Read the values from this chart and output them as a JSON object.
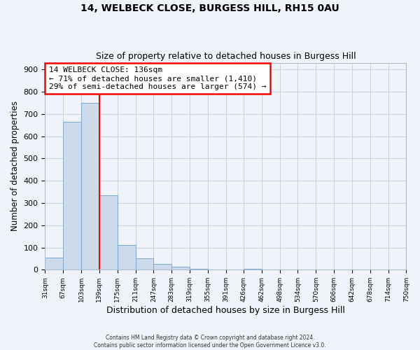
{
  "title": "14, WELBECK CLOSE, BURGESS HILL, RH15 0AU",
  "subtitle": "Size of property relative to detached houses in Burgess Hill",
  "xlabel": "Distribution of detached houses by size in Burgess Hill",
  "ylabel": "Number of detached properties",
  "footer_line1": "Contains HM Land Registry data © Crown copyright and database right 2024.",
  "footer_line2": "Contains public sector information licensed under the Open Government Licence v3.0.",
  "bin_edges": [
    31,
    67,
    103,
    139,
    175,
    211,
    247,
    283,
    319,
    355,
    391,
    426,
    462,
    498,
    534,
    570,
    606,
    642,
    678,
    714,
    750
  ],
  "bin_labels": [
    "31sqm",
    "67sqm",
    "103sqm",
    "139sqm",
    "175sqm",
    "211sqm",
    "247sqm",
    "283sqm",
    "319sqm",
    "355sqm",
    "391sqm",
    "426sqm",
    "462sqm",
    "498sqm",
    "534sqm",
    "570sqm",
    "606sqm",
    "642sqm",
    "678sqm",
    "714sqm",
    "750sqm"
  ],
  "bar_heights": [
    55,
    665,
    750,
    335,
    110,
    52,
    27,
    15,
    5,
    0,
    0,
    5,
    0,
    0,
    0,
    0,
    0,
    0,
    0,
    0
  ],
  "bar_color": "#ccdaeb",
  "bar_edge_color": "#7aaacf",
  "vline_x": 139,
  "vline_color": "red",
  "annotation_text": "14 WELBECK CLOSE: 136sqm\n← 71% of detached houses are smaller (1,410)\n29% of semi-detached houses are larger (574) →",
  "ylim": [
    0,
    930
  ],
  "xlim": [
    31,
    750
  ],
  "grid_color": "#c8d4e4",
  "bg_color": "#ffffff",
  "fig_bg_color": "#f0f4fa"
}
